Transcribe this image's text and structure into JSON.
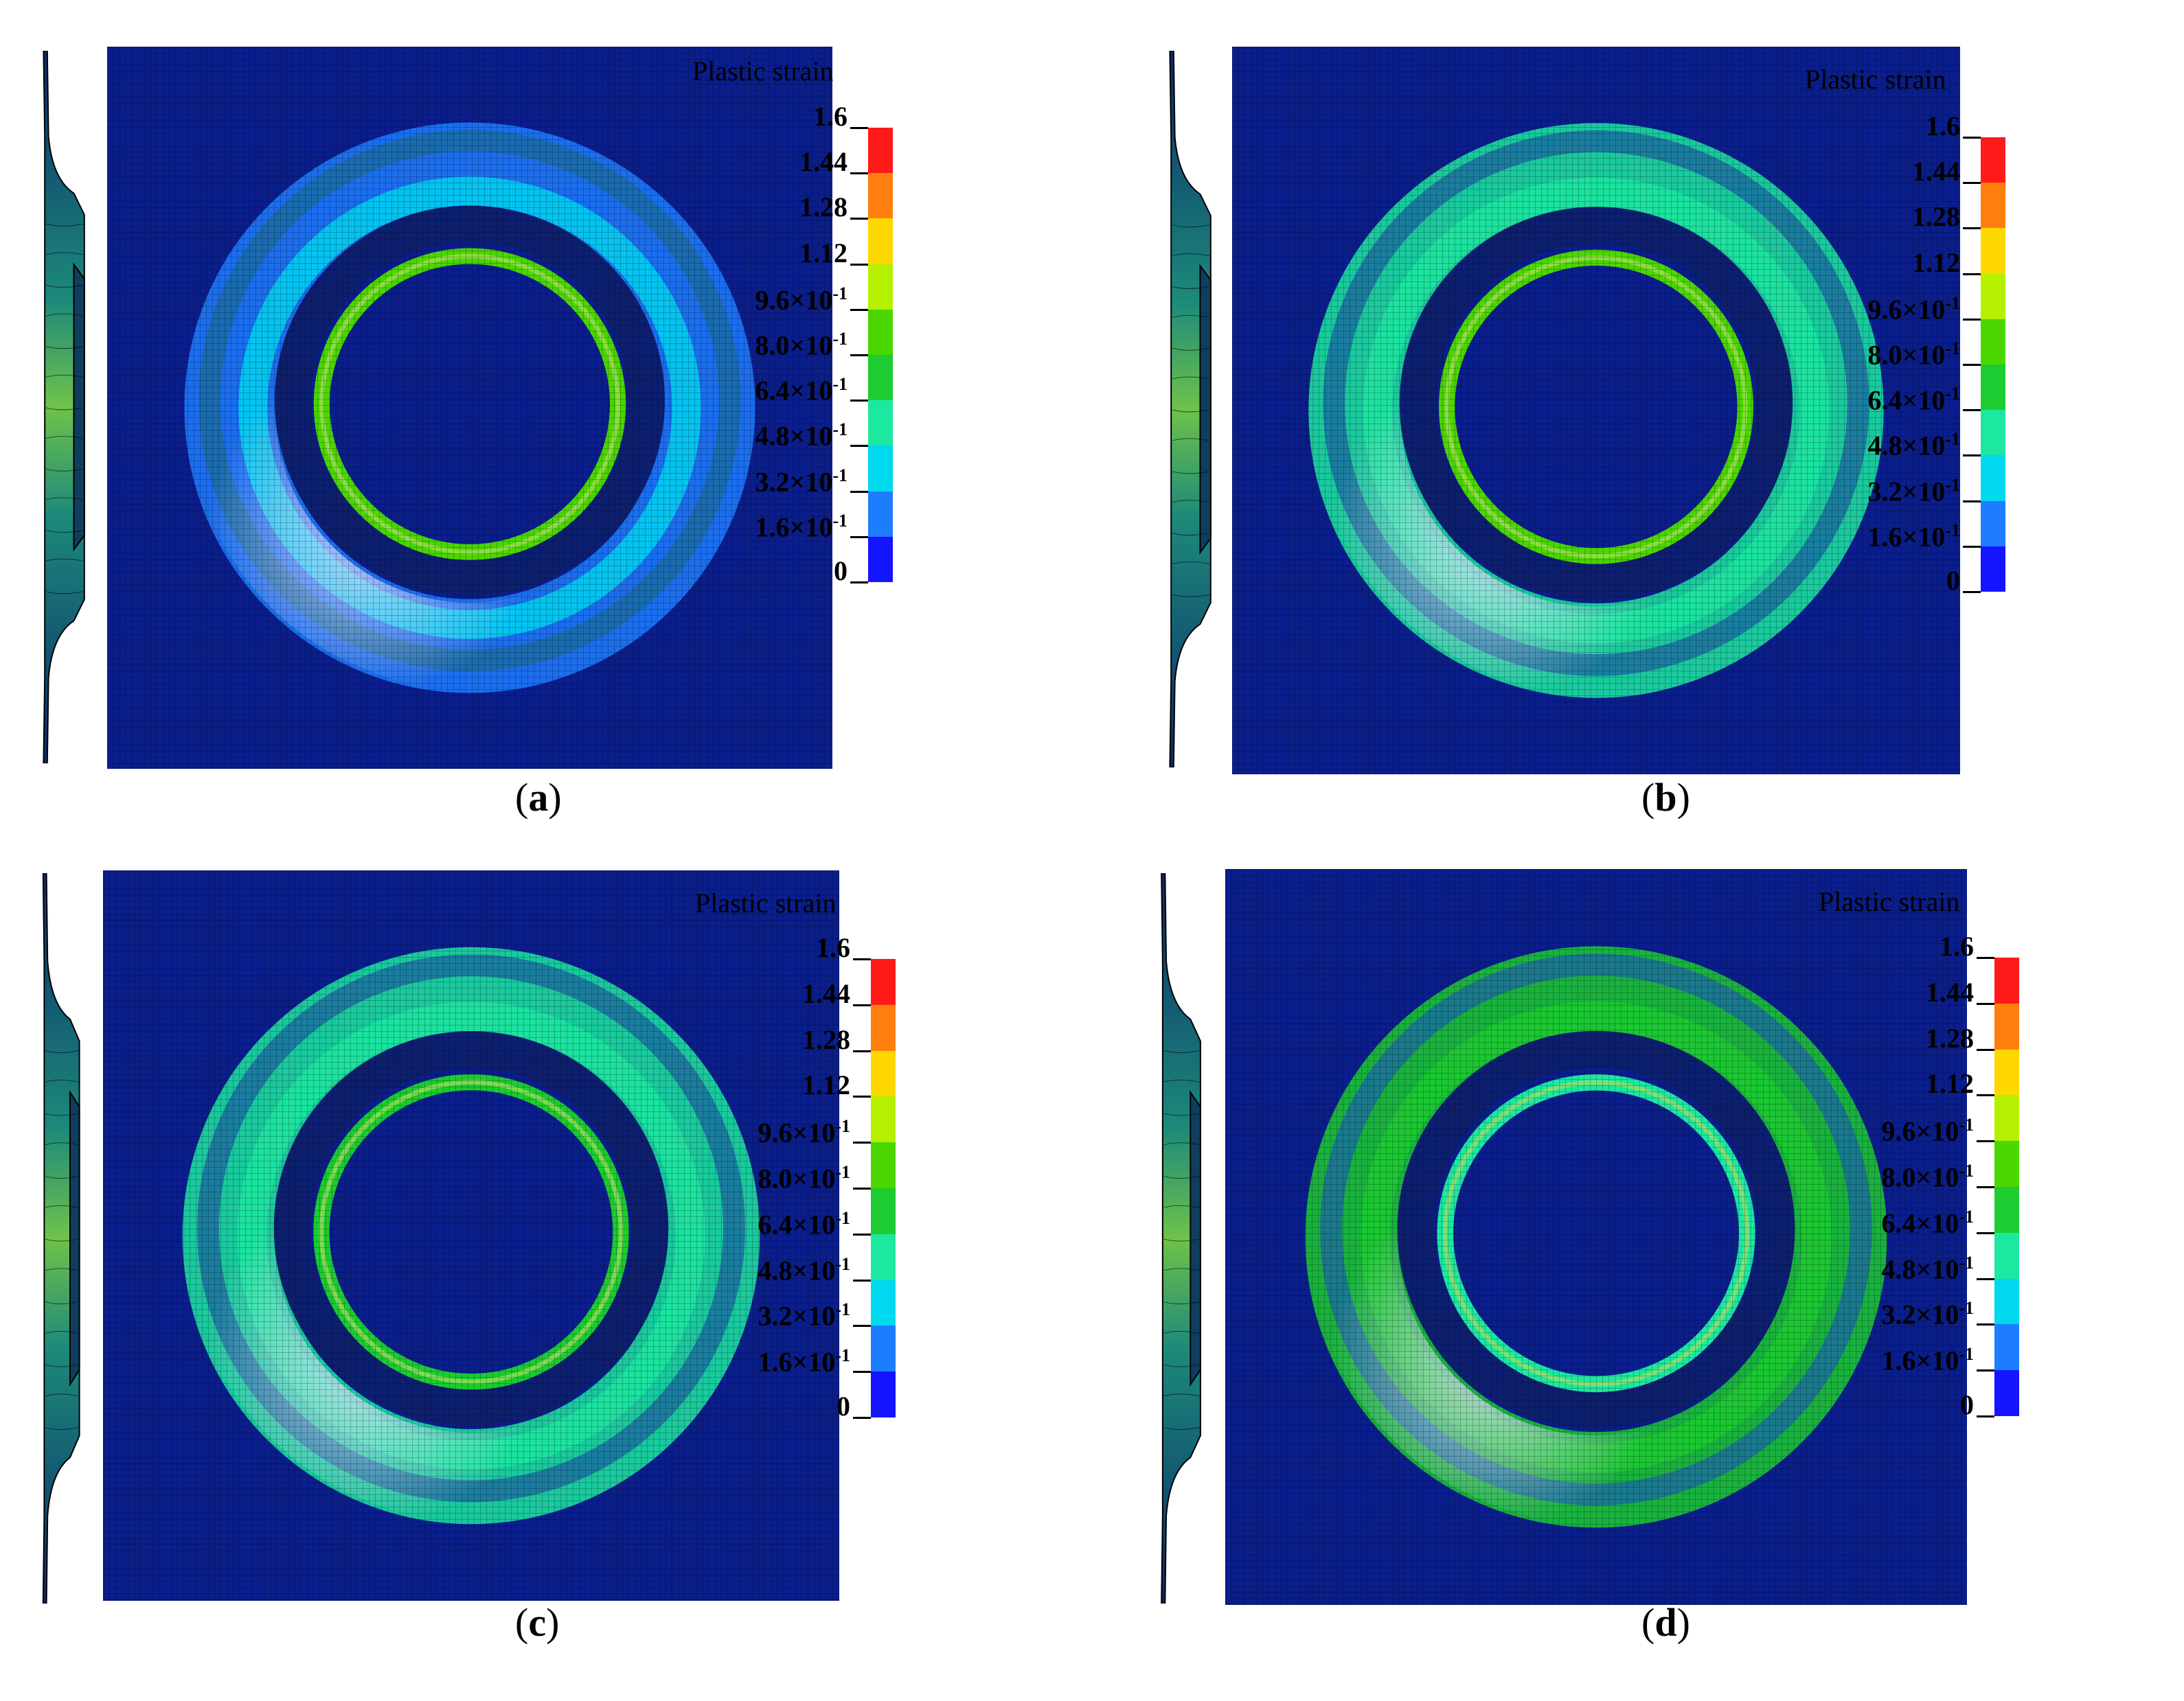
{
  "figure": {
    "legend_title": "Plastic strain",
    "legend_ticks": [
      "1.6",
      "1.44",
      "1.28",
      "1.12",
      "9.6×10<sup>-1</sup>",
      "8.0×10<sup>-1</sup>",
      "6.4×10<sup>-1</sup>",
      "4.8×10<sup>-1</sup>",
      "3.2×10<sup>-1</sup>",
      "1.6×10<sup>-1</sup>",
      "0"
    ],
    "legend_colors": [
      "#ff1a1a",
      "#ff7f0e",
      "#ffd700",
      "#b5f000",
      "#4cd600",
      "#1ccc30",
      "#1de8a0",
      "#00d8f0",
      "#1e7dff",
      "#1414ff"
    ],
    "background_color": "#0a1e8c",
    "panels": [
      {
        "id": "a",
        "label": "a",
        "levels": {
          "outer_ring": 0.35,
          "inner_ring": 0.95,
          "sw_highlight": 0.55
        }
      },
      {
        "id": "b",
        "label": "b",
        "levels": {
          "outer_ring": 0.55,
          "inner_ring": 0.95,
          "sw_highlight": 0.6
        }
      },
      {
        "id": "c",
        "label": "c",
        "levels": {
          "outer_ring": 0.65,
          "inner_ring": 0.75,
          "sw_highlight": 0.6
        }
      },
      {
        "id": "d",
        "label": "d",
        "levels": {
          "outer_ring": 0.75,
          "inner_ring": 0.55,
          "sw_highlight": 0.6
        }
      }
    ]
  }
}
